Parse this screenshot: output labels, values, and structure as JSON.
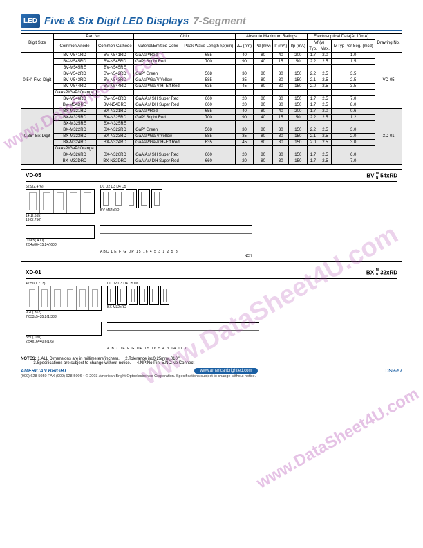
{
  "header": {
    "logo": "LED",
    "title_main": "Five & Six Digit LED Displays",
    "title_sub": "7-Segment"
  },
  "watermark": "www.DataSheet4U.com",
  "table": {
    "headers": {
      "digit_size": "Digit Size",
      "part_no": "Part No.",
      "common_anode": "Common Anode",
      "common_cathode": "Common Cathode",
      "chip": "Chip",
      "material": "Material/Emitted Color",
      "peak_wave": "Peak Wave Length λp(nm)",
      "abs_max": "Absolute Maximum Ratings",
      "d_lambda": "Δλ (nm)",
      "pd": "Pd (mw)",
      "if": "If (mA)",
      "ifp": "Ifp (mA)",
      "electro": "Electro-optical Data(At 10mA)",
      "vf": "Vf (v)",
      "typ": "Typ.",
      "max": "Max.",
      "iv": "Iv.Typ Per.Seg. (mcd)",
      "drawing": "Drawing No."
    },
    "groups": [
      {
        "digit_size": "0.54\" Five-Digit",
        "drawing": "VD-05",
        "shaded": false,
        "rows": [
          {
            "ca": "BV-M541RD",
            "cc": "BV-N541RD",
            "mat": "GaAsP/Red",
            "wl": "655",
            "dl": "40",
            "pd": "80",
            "if": "40",
            "ifp": "200",
            "vft": "1.7",
            "vfm": "2.0",
            "iv": "1.0"
          },
          {
            "ca": "BV-M545RD",
            "cc": "BV-N545RD",
            "mat": "GaP/ Bright Red",
            "wl": "700",
            "dl": "90",
            "pd": "40",
            "if": "15",
            "ifp": "50",
            "vft": "2.2",
            "vfm": "2.5",
            "iv": "1.5",
            "rowspan": 2
          },
          {
            "ca": "BV-M545RE",
            "cc": "BV-N545RE",
            "mat": "",
            "wl": "",
            "dl": "",
            "pd": "",
            "if": "",
            "ifp": "",
            "vft": "",
            "vfm": "",
            "iv": ""
          },
          {
            "ca": "BV-M542RD",
            "cc": "BV-N542RD",
            "mat": "GaP/ Green",
            "wl": "568",
            "dl": "30",
            "pd": "80",
            "if": "30",
            "ifp": "150",
            "vft": "2.2",
            "vfm": "2.5",
            "iv": "3.5"
          },
          {
            "ca": "BV-M543RD",
            "cc": "BV-N543RD",
            "mat": "GaAsP/GaP/ Yellow",
            "wl": "585",
            "dl": "35",
            "pd": "80",
            "if": "30",
            "ifp": "150",
            "vft": "2.1",
            "vfm": "2.5",
            "iv": "2.5"
          },
          {
            "ca": "BV-M544RD",
            "cc": "BV-N544RD",
            "mat": "GaAsP/GaP/ Hi-Eff.Red",
            "wl": "635",
            "dl": "45",
            "pd": "80",
            "if": "30",
            "ifp": "150",
            "vft": "2.0",
            "vfm": "2.5",
            "iv": "3.5",
            "rowspan": 1
          },
          {
            "ca": "",
            "cc": "",
            "mat": "GaAsP/GaP/ Orange",
            "wl": "",
            "dl": "",
            "pd": "",
            "if": "",
            "ifp": "",
            "vft": "",
            "vfm": "",
            "iv": ""
          },
          {
            "ca": "BV-M546RD",
            "cc": "BV-N546RD",
            "mat": "GaAlAs/ SH Super Red",
            "wl": "660",
            "dl": "20",
            "pd": "80",
            "if": "30",
            "ifp": "150",
            "vft": "1.7",
            "vfm": "2.5",
            "iv": "7.0"
          },
          {
            "ca": "BV-M54DRD",
            "cc": "BV-N54DRD",
            "mat": "GaAlAs/ DH Super Red",
            "wl": "660",
            "dl": "20",
            "pd": "80",
            "if": "30",
            "ifp": "150",
            "vft": "1.7",
            "vfm": "2.5",
            "iv": "8.0"
          }
        ]
      },
      {
        "digit_size": "0.36\" Six-Digit",
        "drawing": "XD-01",
        "shaded": true,
        "rows": [
          {
            "ca": "BX-M321RD",
            "cc": "BX-N321RD",
            "mat": "GaAsP/Red",
            "wl": "655",
            "dl": "40",
            "pd": "80",
            "if": "40",
            "ifp": "200",
            "vft": "1.7",
            "vfm": "2.0",
            "iv": "0.6"
          },
          {
            "ca": "BX-M325RD",
            "cc": "BX-N325RD",
            "mat": "GaP/ Bright Red",
            "wl": "700",
            "dl": "90",
            "pd": "40",
            "if": "15",
            "ifp": "50",
            "vft": "2.2",
            "vfm": "2.5",
            "iv": "1.2",
            "rowspan": 2
          },
          {
            "ca": "BX-M325RE",
            "cc": "BX-N325RE",
            "mat": "",
            "wl": "",
            "dl": "",
            "pd": "",
            "if": "",
            "ifp": "",
            "vft": "",
            "vfm": "",
            "iv": ""
          },
          {
            "ca": "BX-M322RD",
            "cc": "BX-N322RD",
            "mat": "GaP/ Green",
            "wl": "568",
            "dl": "30",
            "pd": "80",
            "if": "30",
            "ifp": "150",
            "vft": "2.2",
            "vfm": "2.5",
            "iv": "3.0"
          },
          {
            "ca": "BX-M323RD",
            "cc": "BX-N323RD",
            "mat": "GaAsP/GaP/ Yellow",
            "wl": "585",
            "dl": "35",
            "pd": "80",
            "if": "30",
            "ifp": "150",
            "vft": "2.1",
            "vfm": "2.5",
            "iv": "2.0"
          },
          {
            "ca": "BX-M324RD",
            "cc": "BX-N324RD",
            "mat": "GaAsP/GaP/ Hi-Eff.Red",
            "wl": "635",
            "dl": "45",
            "pd": "80",
            "if": "30",
            "ifp": "150",
            "vft": "2.0",
            "vfm": "2.5",
            "iv": "3.0",
            "rowspan": 1
          },
          {
            "ca": "",
            "cc": "",
            "mat": "GaAsP/GaP/ Orange",
            "wl": "",
            "dl": "",
            "pd": "",
            "if": "",
            "ifp": "",
            "vft": "",
            "vfm": "",
            "iv": ""
          },
          {
            "ca": "BX-M326RD",
            "cc": "BX-N326RD",
            "mat": "GaAlAs/ SH Super Red",
            "wl": "660",
            "dl": "20",
            "pd": "80",
            "if": "30",
            "ifp": "150",
            "vft": "1.7",
            "vfm": "2.5",
            "iv": "6.0"
          },
          {
            "ca": "BX-M32DRD",
            "cc": "BX-N32DRD",
            "mat": "GaAlAs/ DH Super Red",
            "wl": "660",
            "dl": "20",
            "pd": "80",
            "if": "30",
            "ifp": "150",
            "vft": "1.7",
            "vfm": "2.5",
            "iv": "7.0"
          }
        ]
      }
    ]
  },
  "diag1": {
    "left": "VD-05",
    "right_prefix": "BV-",
    "right_suffix": " 54xRD",
    "dims": [
      "14.1(.555)",
      "8.1(.319)",
      "62.9(2.476)",
      "19.0(.750)",
      "15.24(.60)"
    ],
    "side_dims": [
      "D19.5(.400)",
      "2.54x06=15.24(.600)",
      "8.00(.315)",
      "5.00(.118) MIN"
    ],
    "digit_labels": [
      "D1",
      "D2",
      "D3",
      "D4",
      "D5"
    ],
    "part_label": "BV-M54xRD",
    "pin_legend": "ABC DE F G DP  15 16 4 5 3 1 2 5 3",
    "nc": "NC:7"
  },
  "diag2": {
    "left": "XD-01",
    "right_prefix": "BX-",
    "right_suffix": " 32xRD",
    "dims": [
      "9.20(.362)",
      "4.88(.189)",
      "7.80(.307)",
      "7.033x5=35.2(1.383)",
      "42.50(1.713)",
      "14.00(.551)",
      "10.72(.422)",
      "1.30(.051)"
    ],
    "side_dims": [
      "8.50(.020)",
      "7.10(.280)",
      "3.00(.118)MIN",
      "2.54x16=40.6(1.6)",
      "0.5(.020)"
    ],
    "digit_labels": [
      "D1",
      "D2",
      "D3",
      "D4",
      "D5",
      "D6"
    ],
    "part_label": "BX-M32xRD",
    "pin_legend": "A BC DE F G DP  15 16 5 4 3 14 11 7"
  },
  "notes": {
    "label": "NOTES:",
    "n1": "1.ALL Dimensions are in millimeters(inches).",
    "n2": "2.Tolerance is±0.25mm(.010\")",
    "n3": "3.Specifications are subject to change without notice.",
    "n4": "4.NP:No Pin. 5.NC:No Connect"
  },
  "footer": {
    "company": "AMERICAN BRIGHT",
    "url": "www.americanbrightled.com",
    "page": "DSP-57",
    "line2": "(909) 628-5050  FAX (909) 628-5006 • © 2003 American Bright Optoelectronics Corporation. Specifications subject to change without notice."
  }
}
